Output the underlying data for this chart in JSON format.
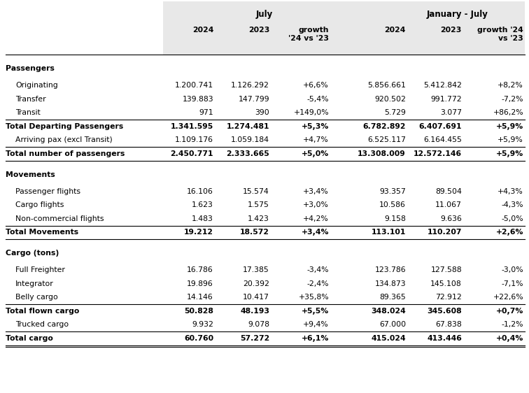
{
  "sections": [
    {
      "section_label": "Passengers",
      "rows": [
        {
          "label": "Originating",
          "bold": false,
          "indent": true,
          "border_top": false,
          "border_bottom": false,
          "values": [
            "1.200.741",
            "1.126.292",
            "+6,6%",
            "5.856.661",
            "5.412.842",
            "+8,2%"
          ]
        },
        {
          "label": "Transfer",
          "bold": false,
          "indent": true,
          "border_top": false,
          "border_bottom": false,
          "values": [
            "139.883",
            "147.799",
            "-5,4%",
            "920.502",
            "991.772",
            "-7,2%"
          ]
        },
        {
          "label": "Transit",
          "bold": false,
          "indent": true,
          "border_top": false,
          "border_bottom": false,
          "values": [
            "971",
            "390",
            "+149,0%",
            "5.729",
            "3.077",
            "+86,2%"
          ]
        },
        {
          "label": "Total Departing Passengers",
          "bold": true,
          "indent": false,
          "border_top": true,
          "border_bottom": false,
          "values": [
            "1.341.595",
            "1.274.481",
            "+5,3%",
            "6.782.892",
            "6.407.691",
            "+5,9%"
          ]
        },
        {
          "label": "Arriving pax (excl Transit)",
          "bold": false,
          "indent": true,
          "border_top": false,
          "border_bottom": false,
          "values": [
            "1.109.176",
            "1.059.184",
            "+4,7%",
            "6.525.117",
            "6.164.455",
            "+5,9%"
          ]
        },
        {
          "label": "Total number of passengers",
          "bold": true,
          "indent": false,
          "border_top": true,
          "border_bottom": true,
          "values": [
            "2.450.771",
            "2.333.665",
            "+5,0%",
            "13.308.009",
            "12.572.146",
            "+5,9%"
          ]
        }
      ]
    },
    {
      "section_label": "Movements",
      "rows": [
        {
          "label": "Passenger flights",
          "bold": false,
          "indent": true,
          "border_top": false,
          "border_bottom": false,
          "values": [
            "16.106",
            "15.574",
            "+3,4%",
            "93.357",
            "89.504",
            "+4,3%"
          ]
        },
        {
          "label": "Cargo flights",
          "bold": false,
          "indent": true,
          "border_top": false,
          "border_bottom": false,
          "values": [
            "1.623",
            "1.575",
            "+3,0%",
            "10.586",
            "11.067",
            "-4,3%"
          ]
        },
        {
          "label": "Non-commercial flights",
          "bold": false,
          "indent": true,
          "border_top": false,
          "border_bottom": false,
          "values": [
            "1.483",
            "1.423",
            "+4,2%",
            "9.158",
            "9.636",
            "-5,0%"
          ]
        },
        {
          "label": "Total Movements",
          "bold": true,
          "indent": false,
          "border_top": true,
          "border_bottom": true,
          "values": [
            "19.212",
            "18.572",
            "+3,4%",
            "113.101",
            "110.207",
            "+2,6%"
          ]
        }
      ]
    },
    {
      "section_label": "Cargo (tons)",
      "rows": [
        {
          "label": "Full Freighter",
          "bold": false,
          "indent": true,
          "border_top": false,
          "border_bottom": false,
          "values": [
            "16.786",
            "17.385",
            "-3,4%",
            "123.786",
            "127.588",
            "-3,0%"
          ]
        },
        {
          "label": "Integrator",
          "bold": false,
          "indent": true,
          "border_top": false,
          "border_bottom": false,
          "values": [
            "19.896",
            "20.392",
            "-2,4%",
            "134.873",
            "145.108",
            "-7,1%"
          ]
        },
        {
          "label": "Belly cargo",
          "bold": false,
          "indent": true,
          "border_top": false,
          "border_bottom": false,
          "values": [
            "14.146",
            "10.417",
            "+35,8%",
            "89.365",
            "72.912",
            "+22,6%"
          ]
        },
        {
          "label": "Total flown cargo",
          "bold": true,
          "indent": false,
          "border_top": true,
          "border_bottom": false,
          "values": [
            "50.828",
            "48.193",
            "+5,5%",
            "348.024",
            "345.608",
            "+0,7%"
          ]
        },
        {
          "label": "Trucked cargo",
          "bold": false,
          "indent": true,
          "border_top": false,
          "border_bottom": false,
          "values": [
            "9.932",
            "9.078",
            "+9,4%",
            "67.000",
            "67.838",
            "-1,2%"
          ]
        },
        {
          "label": "Total cargo",
          "bold": true,
          "indent": false,
          "border_top": true,
          "border_bottom": true,
          "values": [
            "60.760",
            "57.272",
            "+6,1%",
            "415.024",
            "413.446",
            "+0,4%"
          ]
        }
      ]
    }
  ],
  "header_bg": "#e8e8e8",
  "background_color": "#ffffff",
  "font_size": 7.8,
  "header_font_size": 8.5,
  "july_label": "July",
  "jan_july_label": "January - July",
  "col1_label": "2024",
  "col2_label": "2023",
  "col3_label": "growth\n'24 vs '23",
  "col4_label": "2024",
  "col5_label": "2023",
  "col6_label": "growth '24\nvs '23"
}
